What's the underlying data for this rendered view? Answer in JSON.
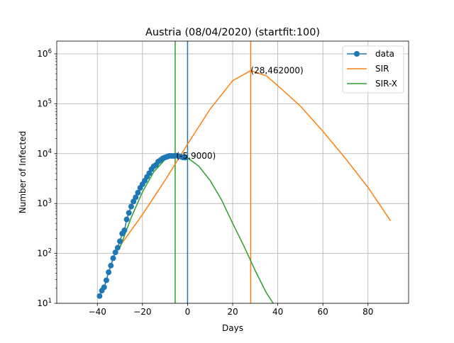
{
  "chart_data": {
    "type": "line",
    "title": "Austria (08/04/2020) (startfit:100)",
    "xlabel": "Days",
    "ylabel": "Number of Infected",
    "xlim": [
      -58,
      98
    ],
    "ylim": [
      10,
      1800000
    ],
    "yscale": "log",
    "grid": true,
    "legend_position": "top-right",
    "x_ticks": [
      -40,
      -20,
      0,
      20,
      40,
      60,
      80
    ],
    "x_tick_labels": [
      "−40",
      "−20",
      "0",
      "20",
      "40",
      "60",
      "80"
    ],
    "y_ticks": [
      10,
      100,
      1000,
      10000,
      100000,
      1000000
    ],
    "y_tick_exponents": [
      "1",
      "2",
      "3",
      "4",
      "5",
      "6"
    ],
    "y_tick_base": "10",
    "series": [
      {
        "name": "data",
        "color": "#1f77b4",
        "marker": "circle",
        "x": [
          -39,
          -38,
          -37,
          -36,
          -35,
          -34,
          -33,
          -32,
          -31,
          -30,
          -29,
          -28,
          -27,
          -26,
          -25,
          -24,
          -23,
          -22,
          -21,
          -20,
          -19,
          -18,
          -17,
          -16,
          -15,
          -14,
          -13,
          -12,
          -11,
          -10,
          -9,
          -8,
          -7,
          -6,
          -5,
          -4,
          -3,
          -2,
          -1
        ],
        "y": [
          14,
          18,
          21,
          29,
          42,
          57,
          80,
          105,
          130,
          175,
          250,
          290,
          480,
          650,
          870,
          1100,
          1330,
          1650,
          2060,
          2430,
          2860,
          3420,
          4040,
          4870,
          5560,
          5950,
          6940,
          7410,
          8030,
          8400,
          8700,
          9050,
          9000,
          9000,
          9100,
          8900,
          8700,
          8400,
          8300
        ]
      },
      {
        "name": "SIR",
        "color": "#ff7f0e",
        "x": [
          -30,
          -20,
          -10,
          0,
          10,
          20,
          28,
          35,
          40,
          50,
          60,
          70,
          80,
          90
        ],
        "y": [
          140,
          600,
          2900,
          15500,
          78000,
          290000,
          462000,
          360000,
          230000,
          90000,
          28000,
          8000,
          2100,
          450
        ]
      },
      {
        "name": "SIR-X",
        "color": "#2ca02c",
        "x": [
          -30,
          -25,
          -20,
          -15,
          -10,
          -5,
          0,
          5,
          10,
          15,
          20,
          25,
          30,
          35,
          38
        ],
        "y": [
          130,
          520,
          1700,
          4300,
          7600,
          9000,
          8300,
          5600,
          2900,
          1200,
          400,
          140,
          45,
          16,
          10
        ]
      }
    ],
    "vlines": [
      {
        "x": 0,
        "color": "#1f77b4"
      },
      {
        "x": 28,
        "color": "#ff7f0e"
      },
      {
        "x": -5.5,
        "color": "#2ca02c"
      }
    ],
    "annotations": [
      {
        "text": "(28,462000)",
        "x": 28,
        "y": 462000
      },
      {
        "text": "(-5,9000)",
        "x": -5,
        "y": 9000
      }
    ]
  }
}
